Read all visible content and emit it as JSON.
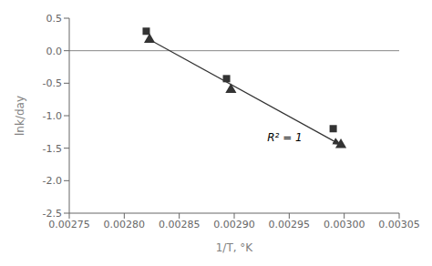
{
  "chart_data": {
    "type": "scatter",
    "x_label": "1/T, °K",
    "y_label": "lnk/day",
    "series": [
      {
        "marker": "square",
        "color": "#333333",
        "x": [
          0.00282,
          0.002893,
          0.00299
        ],
        "values": [
          0.3,
          -0.43,
          -1.2
        ]
      },
      {
        "marker": "triangle",
        "color": "#333333",
        "x": [
          0.002823,
          0.002897,
          0.002997
        ],
        "values": [
          0.17,
          -0.6,
          -1.45
        ]
      }
    ],
    "arrow": {
      "from": [
        0.002823,
        0.17
      ],
      "to": [
        0.002997,
        -1.45
      ],
      "color": "#333333"
    },
    "reference_line": {
      "y": 0,
      "color": "#888888"
    },
    "annotations": [
      {
        "text": "R² = 1",
        "x": 0.00293,
        "y": -1.33
      }
    ],
    "xlim": [
      0.00275,
      0.00305
    ],
    "ylim": [
      -2.5,
      0.5
    ],
    "xticks": [
      0.00275,
      {
        "value": 0.0028,
        "label": "0.00280"
      },
      0.00285,
      {
        "value": 0.0029,
        "label": "0.00290"
      },
      0.00295,
      {
        "value": 0.003,
        "label": "0.00300"
      },
      0.00305
    ],
    "yticks": [
      -2.5,
      {
        "value": -2,
        "label": "-2.0"
      },
      -1.5,
      {
        "value": -1,
        "label": "-1.0"
      },
      -0.5,
      {
        "value": 0,
        "label": "0.0"
      },
      0.5
    ],
    "grid": false
  }
}
